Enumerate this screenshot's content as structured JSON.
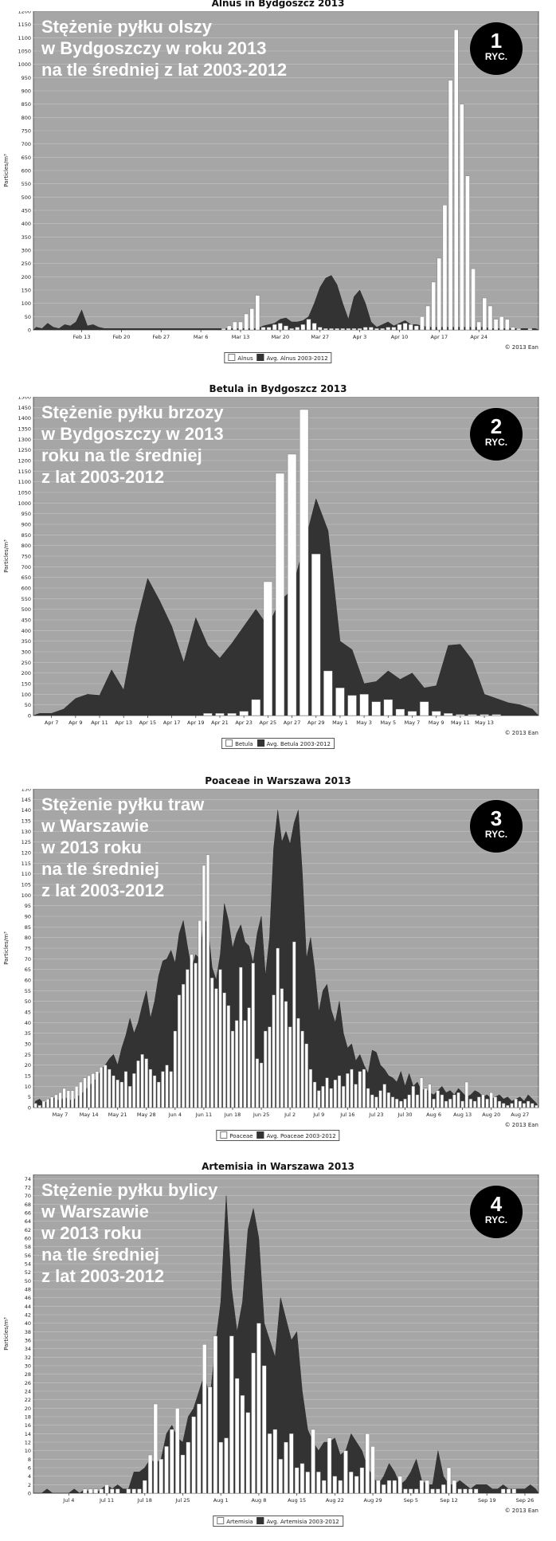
{
  "chart_data": [
    {
      "type": "bar",
      "title": "Alnus in Bydgoszcz 2013",
      "overlay_lines": [
        "Stężenie pyłku olszy",
        "w Bydgoszczy w roku 2013",
        "na tle średniej z lat 2003-2012"
      ],
      "badge_number": "1",
      "badge_text": "RYC.",
      "ylabel": "Particles/m³",
      "ylim": [
        0,
        1200
      ],
      "ystep": 50,
      "x_start": "2013-02-05",
      "x_days": 89,
      "x_ticks": [
        "Feb 13",
        "Feb 20",
        "Feb 27",
        "Mar 6",
        "Mar 13",
        "Mar 20",
        "Mar 27",
        "Apr 3",
        "Apr 10",
        "Apr 17",
        "Apr 24"
      ],
      "grid": true,
      "legend_position": "bottom",
      "copyright": "© 2013 Ean",
      "series": [
        {
          "name": "Alnus",
          "style": "white-bar",
          "values": [
            0,
            0,
            0,
            0,
            0,
            0,
            0,
            0,
            0,
            0,
            0,
            0,
            0,
            0,
            0,
            0,
            0,
            0,
            0,
            0,
            0,
            0,
            0,
            0,
            0,
            0,
            0,
            0,
            0,
            0,
            0,
            0,
            0,
            5,
            15,
            30,
            30,
            60,
            80,
            130,
            10,
            10,
            20,
            25,
            15,
            5,
            10,
            20,
            40,
            25,
            10,
            5,
            5,
            5,
            5,
            5,
            5,
            5,
            10,
            10,
            5,
            5,
            10,
            10,
            20,
            25,
            20,
            15,
            50,
            90,
            180,
            270,
            470,
            940,
            1130,
            850,
            580,
            230,
            30,
            120,
            90,
            40,
            50,
            40,
            10,
            5,
            0,
            5,
            0
          ]
        },
        {
          "name": "Avg. Alnus 2003-2012",
          "style": "dark-area",
          "values": [
            10,
            5,
            25,
            10,
            5,
            20,
            15,
            30,
            75,
            15,
            20,
            10,
            5,
            5,
            5,
            5,
            5,
            5,
            5,
            5,
            5,
            5,
            5,
            5,
            5,
            5,
            5,
            5,
            5,
            5,
            5,
            5,
            5,
            5,
            5,
            5,
            5,
            5,
            5,
            5,
            15,
            20,
            25,
            40,
            45,
            30,
            30,
            35,
            50,
            100,
            160,
            195,
            205,
            170,
            100,
            40,
            125,
            150,
            100,
            30,
            10,
            20,
            30,
            15,
            25,
            35,
            20,
            20,
            15,
            10,
            10,
            10,
            10,
            10,
            10,
            10,
            10,
            10,
            10,
            10,
            5,
            5,
            5,
            5,
            5,
            5,
            5,
            5,
            5
          ]
        }
      ]
    },
    {
      "type": "bar",
      "title": "Betula in Bydgoszcz 2013",
      "overlay_lines": [
        "Stężenie pyłku brzozy",
        "w Bydgoszczy w 2013",
        "roku na tle średniej",
        "z lat 2003-2012"
      ],
      "badge_number": "2",
      "badge_text": "RYC.",
      "ylabel": "Particles/m³",
      "ylim": [
        0,
        1500
      ],
      "ystep": 50,
      "x_start": "2013-04-06",
      "x_days": 42,
      "x_ticks": [
        "Apr 7",
        "Apr 9",
        "Apr 11",
        "Apr 13",
        "Apr 15",
        "Apr 17",
        "Apr 19",
        "Apr 21",
        "Apr 23",
        "Apr 25",
        "Apr 27",
        "Apr 29",
        "May 1",
        "May 3",
        "May 5",
        "May 7",
        "May 9",
        "May 11",
        "May 13"
      ],
      "grid": true,
      "legend_position": "bottom",
      "copyright": "© 2013 Ean",
      "series": [
        {
          "name": "Betula",
          "style": "white-bar",
          "values": [
            0,
            0,
            0,
            0,
            0,
            0,
            0,
            0,
            0,
            0,
            0,
            0,
            0,
            0,
            10,
            10,
            10,
            20,
            75,
            630,
            1140,
            1230,
            1440,
            760,
            210,
            130,
            95,
            100,
            65,
            75,
            30,
            20,
            65,
            20,
            10,
            5,
            5,
            5,
            5,
            0,
            0,
            0
          ]
        },
        {
          "name": "Avg. Betula 2003-2012",
          "style": "dark-area",
          "values": [
            10,
            10,
            30,
            80,
            100,
            95,
            215,
            120,
            420,
            645,
            540,
            420,
            250,
            460,
            330,
            270,
            340,
            420,
            500,
            420,
            540,
            590,
            800,
            1020,
            870,
            350,
            310,
            150,
            160,
            210,
            170,
            200,
            130,
            140,
            330,
            335,
            260,
            100,
            80,
            60,
            50,
            30
          ]
        }
      ]
    },
    {
      "type": "bar",
      "title": "Poaceae in Warszawa 2013",
      "overlay_lines": [
        "Stężenie pyłku traw",
        "w Warszawie",
        "w 2013 roku",
        "na tle średniej",
        "z lat 2003-2012"
      ],
      "badge_number": "3",
      "badge_text": "RYC.",
      "ylabel": "Particles/m³",
      "ylim": [
        0,
        150
      ],
      "ystep": 5,
      "x_start": "2013-05-01",
      "x_days": 123,
      "x_ticks": [
        "May 7",
        "May 14",
        "May 21",
        "May 28",
        "Jun 4",
        "Jun 11",
        "Jun 18",
        "Jun 25",
        "Jul 2",
        "Jul 9",
        "Jul 16",
        "Jul 23",
        "Jul 30",
        "Aug 6",
        "Aug 13",
        "Aug 20",
        "Aug 27"
      ],
      "grid": true,
      "legend_position": "bottom",
      "copyright": "© 2013 Ean",
      "series": [
        {
          "name": "Poaceae",
          "style": "white-bar",
          "values": [
            2,
            1,
            3,
            4,
            5,
            6,
            7,
            9,
            8,
            8,
            10,
            12,
            14,
            15,
            16,
            17,
            19,
            20,
            18,
            15,
            13,
            12,
            17,
            10,
            16,
            22,
            25,
            23,
            18,
            15,
            12,
            17,
            20,
            17,
            36,
            53,
            58,
            65,
            72,
            68,
            88,
            114,
            119,
            61,
            56,
            65,
            54,
            48,
            36,
            41,
            66,
            41,
            47,
            68,
            23,
            21,
            36,
            38,
            53,
            75,
            56,
            50,
            38,
            78,
            42,
            36,
            30,
            18,
            12,
            8,
            10,
            14,
            9,
            13,
            15,
            10,
            16,
            18,
            11,
            17,
            18,
            9,
            6,
            5,
            8,
            11,
            7,
            5,
            4,
            3,
            4,
            6,
            10,
            6,
            14,
            9,
            11,
            4,
            8,
            6,
            3,
            4,
            6,
            7,
            3,
            12,
            4,
            3,
            5,
            6,
            4,
            7,
            5,
            3,
            2,
            1,
            2,
            4,
            3,
            2,
            3,
            2,
            1
          ]
        },
        {
          "name": "Avg. Poaceae 2003-2012",
          "style": "dark-area",
          "values": [
            3,
            4,
            2,
            3,
            5,
            4,
            3,
            5,
            4,
            3,
            5,
            6,
            8,
            10,
            12,
            14,
            18,
            20,
            23,
            25,
            20,
            28,
            34,
            42,
            35,
            40,
            48,
            55,
            42,
            50,
            62,
            69,
            70,
            74,
            68,
            82,
            88,
            76,
            65,
            72,
            70,
            90,
            85,
            66,
            60,
            72,
            96,
            88,
            75,
            82,
            86,
            78,
            76,
            68,
            82,
            90,
            62,
            80,
            122,
            140,
            125,
            130,
            124,
            134,
            140,
            110,
            70,
            80,
            65,
            45,
            55,
            58,
            46,
            40,
            50,
            35,
            28,
            30,
            22,
            25,
            20,
            16,
            27,
            26,
            20,
            18,
            15,
            14,
            12,
            17,
            10,
            16,
            10,
            12,
            8,
            9,
            7,
            6,
            8,
            10,
            7,
            8,
            6,
            9,
            7,
            5,
            6,
            8,
            7,
            5,
            6,
            4,
            5,
            6,
            4,
            5,
            3,
            4,
            5,
            3,
            6,
            4,
            2
          ]
        }
      ]
    },
    {
      "type": "bar",
      "title": "Artemisia in Warszawa 2013",
      "overlay_lines": [
        "Stężenie pyłku bylicy",
        "w Warszawie",
        "w 2013 roku",
        "na tle średniej",
        "z lat 2003-2012"
      ],
      "badge_number": "4",
      "badge_text": "RYC.",
      "ylabel": "Particles/m³",
      "ylim": [
        0,
        75
      ],
      "ystep": 2,
      "x_start": "2013-06-28",
      "x_days": 93,
      "x_ticks": [
        "Jul 4",
        "Jul 11",
        "Jul 18",
        "Jul 25",
        "Aug 1",
        "Aug 8",
        "Aug 15",
        "Aug 22",
        "Aug 29",
        "Sep 5",
        "Sep 12",
        "Sep 19",
        "Sep 26"
      ],
      "grid": true,
      "legend_position": "bottom",
      "copyright": "© 2013 Ean",
      "series": [
        {
          "name": "Artemisia",
          "style": "white-bar",
          "values": [
            0,
            0,
            0,
            0,
            0,
            0,
            0,
            0,
            0,
            1,
            1,
            1,
            1,
            2,
            1,
            1,
            0,
            1,
            1,
            1,
            3,
            9,
            21,
            8,
            11,
            15,
            20,
            9,
            12,
            18,
            21,
            35,
            25,
            37,
            12,
            13,
            37,
            27,
            23,
            19,
            33,
            40,
            30,
            14,
            15,
            8,
            12,
            14,
            6,
            7,
            5,
            15,
            5,
            3,
            13,
            4,
            3,
            10,
            5,
            4,
            6,
            14,
            11,
            3,
            2,
            3,
            3,
            4,
            1,
            1,
            1,
            3,
            3,
            1,
            1,
            2,
            6,
            3,
            1,
            1,
            1,
            1,
            0,
            0,
            0,
            0,
            1,
            1,
            1,
            0,
            0,
            0,
            0
          ]
        },
        {
          "name": "Avg. Artemisia 2003-2012",
          "style": "dark-area",
          "values": [
            0,
            0,
            1,
            0,
            0,
            0,
            0,
            1,
            0,
            1,
            0,
            0,
            1,
            2,
            1,
            2,
            1,
            1,
            5,
            5,
            6,
            8,
            7,
            8,
            14,
            16,
            13,
            12,
            18,
            20,
            24,
            28,
            22,
            35,
            45,
            70,
            48,
            38,
            45,
            62,
            67,
            60,
            40,
            36,
            32,
            46,
            41,
            36,
            38,
            24,
            15,
            12,
            10,
            12,
            12,
            13,
            9,
            10,
            14,
            12,
            10,
            6,
            4,
            2,
            4,
            7,
            5,
            2,
            3,
            5,
            8,
            3,
            2,
            2,
            10,
            4,
            2,
            2,
            3,
            2,
            1,
            2,
            2,
            2,
            1,
            1,
            2,
            1,
            1,
            1,
            1,
            2,
            1
          ]
        }
      ]
    }
  ]
}
